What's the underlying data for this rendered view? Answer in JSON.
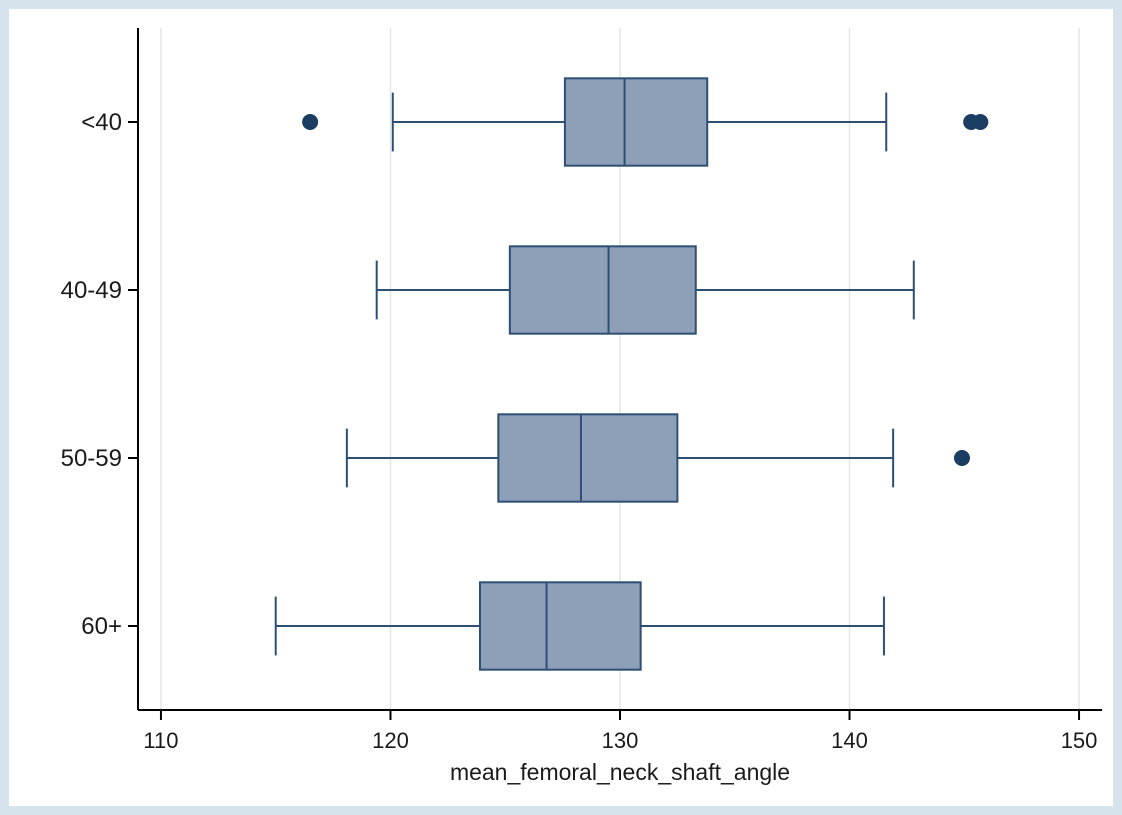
{
  "chart_data": {
    "type": "boxplot",
    "orientation": "horizontal",
    "title": "",
    "xlabel": "mean_femoral_neck_shaft_angle",
    "ylabel": "",
    "xlim": [
      109,
      151
    ],
    "xticks": [
      110,
      120,
      130,
      140,
      150
    ],
    "grid": true,
    "categories": [
      "<40",
      "40-49",
      "50-59",
      "60+"
    ],
    "boxes": [
      {
        "category": "<40",
        "whisker_low": 120.1,
        "q1": 127.6,
        "median": 130.2,
        "q3": 133.8,
        "whisker_high": 141.6,
        "outliers": [
          116.5,
          145.3,
          145.7
        ]
      },
      {
        "category": "40-49",
        "whisker_low": 119.4,
        "q1": 125.2,
        "median": 129.5,
        "q3": 133.3,
        "whisker_high": 142.8,
        "outliers": []
      },
      {
        "category": "50-59",
        "whisker_low": 118.1,
        "q1": 124.7,
        "median": 128.3,
        "q3": 132.5,
        "whisker_high": 141.9,
        "outliers": [
          144.9
        ]
      },
      {
        "category": "60+",
        "whisker_low": 115.0,
        "q1": 123.9,
        "median": 126.8,
        "q3": 130.9,
        "whisker_high": 141.5,
        "outliers": []
      }
    ],
    "colors": {
      "box_fill": "#8ea0b8",
      "box_stroke": "#2d4f73",
      "outlier": "#1c3d63",
      "grid": "#e6e6e6",
      "axis": "#000000",
      "frame": "#d6e2ec"
    }
  }
}
